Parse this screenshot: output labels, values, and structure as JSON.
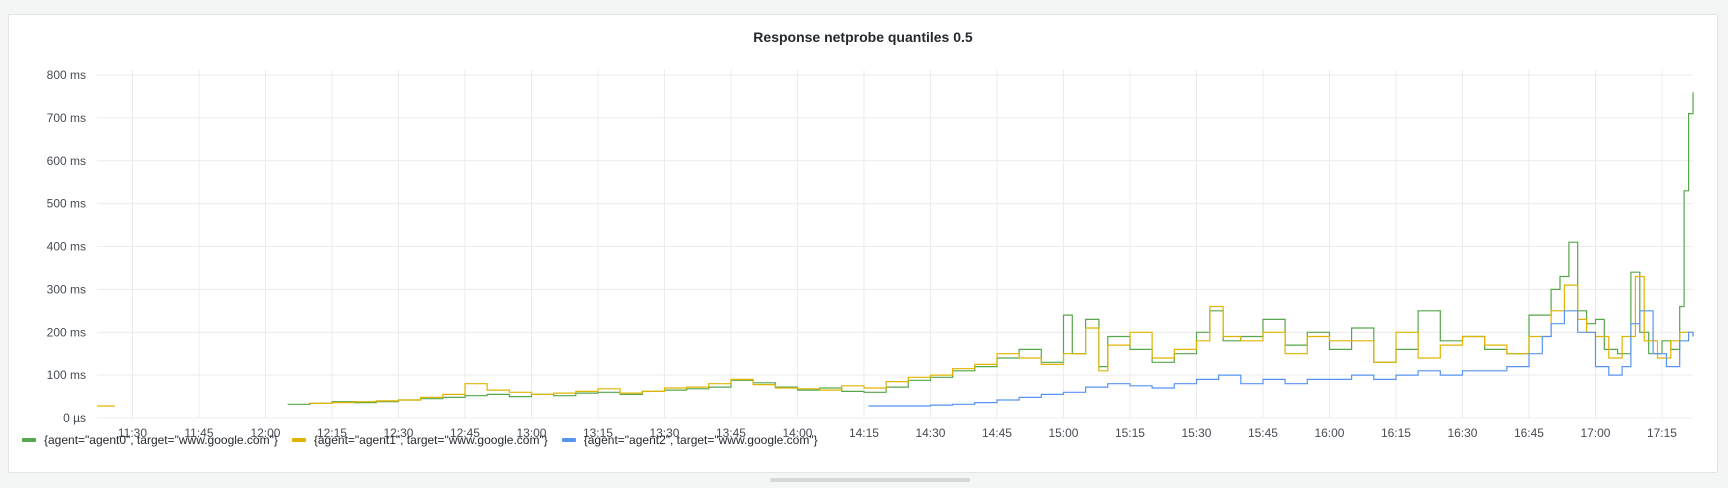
{
  "panel": {
    "title": "Response netprobe quantiles 0.5"
  },
  "colors": {
    "agent0": "#56a64b",
    "agent1": "#e0b400",
    "agent2": "#5794f2",
    "grid": "#ececec"
  },
  "chart_data": {
    "type": "line",
    "title": "Response netprobe quantiles 0.5",
    "y_unit": "ms",
    "ylim": [
      0,
      800
    ],
    "y_ticks": [
      {
        "value": 0,
        "label": "0 µs"
      },
      {
        "value": 100,
        "label": "100 ms"
      },
      {
        "value": 200,
        "label": "200 ms"
      },
      {
        "value": 300,
        "label": "300 ms"
      },
      {
        "value": 400,
        "label": "400 ms"
      },
      {
        "value": 500,
        "label": "500 ms"
      },
      {
        "value": 600,
        "label": "600 ms"
      },
      {
        "value": 700,
        "label": "700 ms"
      },
      {
        "value": 800,
        "label": "800 ms"
      }
    ],
    "x_range": [
      "11:22",
      "17:22"
    ],
    "x_ticks": [
      "11:30",
      "11:45",
      "12:00",
      "12:15",
      "12:30",
      "12:45",
      "13:00",
      "13:15",
      "13:30",
      "13:45",
      "14:00",
      "14:15",
      "14:30",
      "14:45",
      "15:00",
      "15:15",
      "15:30",
      "15:45",
      "16:00",
      "16:15",
      "16:30",
      "16:45",
      "17:00",
      "17:15"
    ],
    "grid": true,
    "legend_position": "bottom-left",
    "series": [
      {
        "name": "{agent=\"agent0\", target=\"www.google.com\"}",
        "color": "#56a64b",
        "points": [
          [
            "12:05",
            32
          ],
          [
            "12:10",
            34
          ],
          [
            "12:15",
            38
          ],
          [
            "12:20",
            36
          ],
          [
            "12:25",
            38
          ],
          [
            "12:30",
            42
          ],
          [
            "12:35",
            45
          ],
          [
            "12:40",
            48
          ],
          [
            "12:45",
            52
          ],
          [
            "12:50",
            55
          ],
          [
            "12:55",
            50
          ],
          [
            "13:00",
            55
          ],
          [
            "13:05",
            52
          ],
          [
            "13:10",
            58
          ],
          [
            "13:15",
            60
          ],
          [
            "13:20",
            55
          ],
          [
            "13:25",
            62
          ],
          [
            "13:30",
            65
          ],
          [
            "13:35",
            68
          ],
          [
            "13:40",
            72
          ],
          [
            "13:45",
            88
          ],
          [
            "13:50",
            82
          ],
          [
            "13:55",
            72
          ],
          [
            "14:00",
            65
          ],
          [
            "14:05",
            70
          ],
          [
            "14:10",
            62
          ],
          [
            "14:15",
            60
          ],
          [
            "14:20",
            72
          ],
          [
            "14:25",
            88
          ],
          [
            "14:30",
            95
          ],
          [
            "14:35",
            110
          ],
          [
            "14:40",
            120
          ],
          [
            "14:45",
            140
          ],
          [
            "14:50",
            160
          ],
          [
            "14:55",
            130
          ],
          [
            "15:00",
            240
          ],
          [
            "15:02",
            150
          ],
          [
            "15:05",
            230
          ],
          [
            "15:08",
            120
          ],
          [
            "15:10",
            190
          ],
          [
            "15:15",
            160
          ],
          [
            "15:20",
            130
          ],
          [
            "15:25",
            150
          ],
          [
            "15:30",
            200
          ],
          [
            "15:33",
            250
          ],
          [
            "15:36",
            180
          ],
          [
            "15:40",
            190
          ],
          [
            "15:45",
            230
          ],
          [
            "15:50",
            170
          ],
          [
            "15:55",
            200
          ],
          [
            "16:00",
            160
          ],
          [
            "16:05",
            210
          ],
          [
            "16:10",
            130
          ],
          [
            "16:15",
            160
          ],
          [
            "16:20",
            250
          ],
          [
            "16:25",
            180
          ],
          [
            "16:30",
            190
          ],
          [
            "16:35",
            160
          ],
          [
            "16:40",
            150
          ],
          [
            "16:45",
            240
          ],
          [
            "16:50",
            300
          ],
          [
            "16:52",
            330
          ],
          [
            "16:54",
            410
          ],
          [
            "16:56",
            250
          ],
          [
            "16:58",
            220
          ],
          [
            "17:00",
            230
          ],
          [
            "17:02",
            160
          ],
          [
            "17:05",
            150
          ],
          [
            "17:08",
            340
          ],
          [
            "17:10",
            200
          ],
          [
            "17:12",
            150
          ],
          [
            "17:15",
            180
          ],
          [
            "17:17",
            160
          ],
          [
            "17:19",
            260
          ],
          [
            "17:20",
            530
          ],
          [
            "17:21",
            710
          ],
          [
            "17:22",
            760
          ]
        ]
      },
      {
        "name": "{agent=\"agent1\", target=\"www.google.com\"}",
        "color": "#e0b400",
        "points": [
          [
            "11:22",
            28
          ],
          [
            "11:26",
            28
          ],
          [
            "12:10",
            34
          ],
          [
            "12:15",
            36
          ],
          [
            "12:20",
            38
          ],
          [
            "12:25",
            40
          ],
          [
            "12:30",
            42
          ],
          [
            "12:35",
            48
          ],
          [
            "12:40",
            55
          ],
          [
            "12:45",
            80
          ],
          [
            "12:50",
            65
          ],
          [
            "12:55",
            60
          ],
          [
            "13:00",
            55
          ],
          [
            "13:05",
            58
          ],
          [
            "13:10",
            62
          ],
          [
            "13:15",
            68
          ],
          [
            "13:20",
            58
          ],
          [
            "13:25",
            62
          ],
          [
            "13:30",
            70
          ],
          [
            "13:35",
            72
          ],
          [
            "13:40",
            80
          ],
          [
            "13:45",
            90
          ],
          [
            "13:50",
            78
          ],
          [
            "13:55",
            70
          ],
          [
            "14:00",
            68
          ],
          [
            "14:05",
            65
          ],
          [
            "14:10",
            75
          ],
          [
            "14:15",
            70
          ],
          [
            "14:20",
            85
          ],
          [
            "14:25",
            95
          ],
          [
            "14:30",
            100
          ],
          [
            "14:35",
            115
          ],
          [
            "14:40",
            125
          ],
          [
            "14:45",
            150
          ],
          [
            "14:50",
            140
          ],
          [
            "14:55",
            125
          ],
          [
            "15:00",
            150
          ],
          [
            "15:05",
            210
          ],
          [
            "15:08",
            110
          ],
          [
            "15:10",
            170
          ],
          [
            "15:15",
            200
          ],
          [
            "15:20",
            140
          ],
          [
            "15:25",
            160
          ],
          [
            "15:30",
            180
          ],
          [
            "15:33",
            260
          ],
          [
            "15:36",
            190
          ],
          [
            "15:40",
            180
          ],
          [
            "15:45",
            200
          ],
          [
            "15:50",
            150
          ],
          [
            "15:55",
            190
          ],
          [
            "16:00",
            180
          ],
          [
            "16:05",
            180
          ],
          [
            "16:10",
            130
          ],
          [
            "16:15",
            200
          ],
          [
            "16:20",
            140
          ],
          [
            "16:25",
            170
          ],
          [
            "16:30",
            190
          ],
          [
            "16:35",
            170
          ],
          [
            "16:40",
            150
          ],
          [
            "16:45",
            190
          ],
          [
            "16:50",
            250
          ],
          [
            "16:53",
            310
          ],
          [
            "16:56",
            230
          ],
          [
            "16:58",
            200
          ],
          [
            "17:00",
            190
          ],
          [
            "17:03",
            140
          ],
          [
            "17:06",
            190
          ],
          [
            "17:09",
            330
          ],
          [
            "17:11",
            180
          ],
          [
            "17:14",
            140
          ],
          [
            "17:17",
            180
          ],
          [
            "17:19",
            200
          ],
          [
            "17:22",
            190
          ]
        ]
      },
      {
        "name": "{agent=\"agent2\", target=\"www.google.com\"}",
        "color": "#5794f2",
        "points": [
          [
            "14:16",
            28
          ],
          [
            "14:26",
            28
          ],
          [
            "14:30",
            30
          ],
          [
            "14:35",
            32
          ],
          [
            "14:40",
            36
          ],
          [
            "14:45",
            42
          ],
          [
            "14:50",
            48
          ],
          [
            "14:55",
            55
          ],
          [
            "15:00",
            60
          ],
          [
            "15:05",
            72
          ],
          [
            "15:10",
            80
          ],
          [
            "15:15",
            75
          ],
          [
            "15:20",
            70
          ],
          [
            "15:25",
            80
          ],
          [
            "15:30",
            90
          ],
          [
            "15:35",
            100
          ],
          [
            "15:40",
            80
          ],
          [
            "15:45",
            90
          ],
          [
            "15:50",
            80
          ],
          [
            "15:55",
            90
          ],
          [
            "16:00",
            90
          ],
          [
            "16:05",
            100
          ],
          [
            "16:10",
            90
          ],
          [
            "16:15",
            100
          ],
          [
            "16:20",
            110
          ],
          [
            "16:25",
            100
          ],
          [
            "16:30",
            110
          ],
          [
            "16:35",
            110
          ],
          [
            "16:40",
            120
          ],
          [
            "16:45",
            150
          ],
          [
            "16:48",
            190
          ],
          [
            "16:50",
            220
          ],
          [
            "16:53",
            250
          ],
          [
            "16:56",
            200
          ],
          [
            "17:00",
            120
          ],
          [
            "17:03",
            100
          ],
          [
            "17:06",
            120
          ],
          [
            "17:08",
            220
          ],
          [
            "17:10",
            250
          ],
          [
            "17:13",
            150
          ],
          [
            "17:16",
            120
          ],
          [
            "17:19",
            180
          ],
          [
            "17:21",
            200
          ],
          [
            "17:22",
            190
          ]
        ]
      }
    ]
  }
}
